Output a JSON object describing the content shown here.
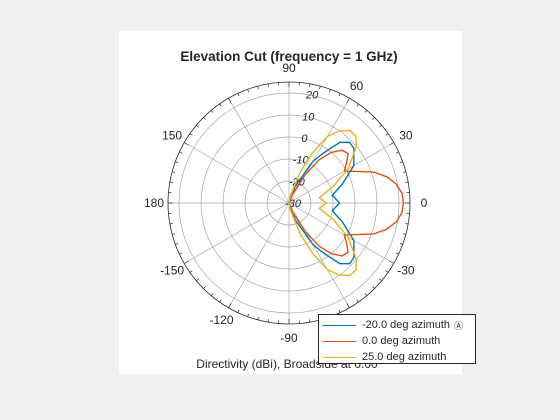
{
  "chart_data": {
    "type": "polar-line",
    "title": "Elevation Cut (frequency = 1 GHz)",
    "caption": "Directivity (dBi), Broadside at 0.00",
    "radial_axis": {
      "range": [
        -30,
        25
      ],
      "ticks": [
        -30,
        -20,
        -10,
        0,
        10,
        20
      ]
    },
    "radial_tick_labels": [
      "-30",
      "-20",
      "-10",
      "0",
      "10",
      "20"
    ],
    "angle_tick_labels": [
      {
        "angle": 0,
        "label": "0"
      },
      {
        "angle": 30,
        "label": "30"
      },
      {
        "angle": 60,
        "label": "60"
      },
      {
        "angle": 90,
        "label": "90"
      },
      {
        "angle": 150,
        "label": "150"
      },
      {
        "angle": 180,
        "label": "180"
      },
      {
        "angle": -150,
        "label": "-150"
      },
      {
        "angle": -120,
        "label": "-120"
      },
      {
        "angle": -90,
        "label": "-90"
      },
      {
        "angle": -30,
        "label": "-30"
      }
    ],
    "series": [
      {
        "name": "-20.0 deg azimuth",
        "color": "#0072bd",
        "points": [
          [
            0,
            -7
          ],
          [
            10,
            -10
          ],
          [
            20,
            -4
          ],
          [
            30,
            4
          ],
          [
            40,
            8.5
          ],
          [
            45,
            9
          ],
          [
            50,
            6
          ],
          [
            55,
            -2
          ],
          [
            60,
            -8
          ],
          [
            70,
            -22
          ],
          [
            90,
            -30
          ],
          [
            270,
            -30
          ],
          [
            290,
            -22
          ],
          [
            300,
            -8
          ],
          [
            305,
            -2
          ],
          [
            310,
            6
          ],
          [
            315,
            9
          ],
          [
            320,
            8.5
          ],
          [
            330,
            4
          ],
          [
            340,
            -4
          ],
          [
            350,
            -10
          ],
          [
            360,
            -7
          ]
        ]
      },
      {
        "name": "0.0 deg azimuth",
        "color": "#d95319",
        "points": [
          [
            0,
            22
          ],
          [
            5,
            21.5
          ],
          [
            10,
            19.5
          ],
          [
            15,
            16
          ],
          [
            20,
            11
          ],
          [
            25,
            4
          ],
          [
            30,
            -1
          ],
          [
            35,
            2
          ],
          [
            40,
            5
          ],
          [
            45,
            4
          ],
          [
            50,
            0
          ],
          [
            55,
            -6
          ],
          [
            60,
            -15
          ],
          [
            70,
            -26
          ],
          [
            90,
            -30
          ],
          [
            270,
            -30
          ],
          [
            290,
            -26
          ],
          [
            300,
            -15
          ],
          [
            305,
            -6
          ],
          [
            310,
            0
          ],
          [
            315,
            4
          ],
          [
            320,
            5
          ],
          [
            325,
            2
          ],
          [
            330,
            -1
          ],
          [
            335,
            4
          ],
          [
            340,
            11
          ],
          [
            345,
            16
          ],
          [
            350,
            19.5
          ],
          [
            355,
            21.5
          ],
          [
            360,
            22
          ]
        ]
      },
      {
        "name": "25.0 deg azimuth",
        "color": "#edb120",
        "points": [
          [
            0,
            -13
          ],
          [
            10,
            -16
          ],
          [
            20,
            -9
          ],
          [
            30,
            1
          ],
          [
            40,
            10
          ],
          [
            45,
            13
          ],
          [
            50,
            13
          ],
          [
            55,
            10
          ],
          [
            60,
            5
          ],
          [
            65,
            -5
          ],
          [
            70,
            -15
          ],
          [
            80,
            -27
          ],
          [
            90,
            -30
          ],
          [
            270,
            -30
          ],
          [
            280,
            -27
          ],
          [
            290,
            -15
          ],
          [
            295,
            -5
          ],
          [
            300,
            5
          ],
          [
            305,
            10
          ],
          [
            310,
            13
          ],
          [
            315,
            13
          ],
          [
            320,
            10
          ],
          [
            330,
            1
          ],
          [
            340,
            -9
          ],
          [
            350,
            -16
          ],
          [
            360,
            -13
          ]
        ]
      }
    ],
    "legend_location": "bottom-right"
  }
}
